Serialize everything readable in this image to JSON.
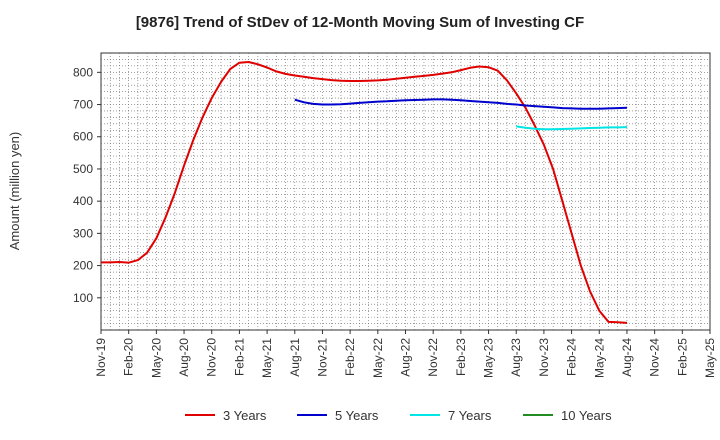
{
  "chart_data": {
    "type": "line",
    "title": "[9876]  Trend of StDev of 12-Month Moving Sum of Investing CF",
    "ylabel": "Amount (million yen)",
    "xlabel": "",
    "ylim": [
      0,
      860
    ],
    "yticks": [
      100,
      200,
      300,
      400,
      500,
      600,
      700,
      800
    ],
    "xlim": [
      "2019-11",
      "2025-05"
    ],
    "xticks": [
      "Nov-19",
      "Feb-20",
      "May-20",
      "Aug-20",
      "Nov-20",
      "Feb-21",
      "May-21",
      "Aug-21",
      "Nov-21",
      "Feb-22",
      "May-22",
      "Aug-22",
      "Nov-22",
      "Feb-23",
      "May-23",
      "Aug-23",
      "Nov-23",
      "Feb-24",
      "May-24",
      "Aug-24",
      "Nov-24",
      "Feb-25",
      "May-25"
    ],
    "grid": true,
    "legend_position": "bottom",
    "series": [
      {
        "name": "3 Years",
        "color": "#e00000",
        "x": [
          "2019-11",
          "2019-12",
          "2020-01",
          "2020-02",
          "2020-03",
          "2020-04",
          "2020-05",
          "2020-06",
          "2020-07",
          "2020-08",
          "2020-09",
          "2020-10",
          "2020-11",
          "2020-12",
          "2021-01",
          "2021-02",
          "2021-03",
          "2021-04",
          "2021-05",
          "2021-06",
          "2021-07",
          "2021-08",
          "2021-09",
          "2021-10",
          "2021-11",
          "2021-12",
          "2022-01",
          "2022-02",
          "2022-03",
          "2022-04",
          "2022-05",
          "2022-06",
          "2022-07",
          "2022-08",
          "2022-09",
          "2022-10",
          "2022-11",
          "2022-12",
          "2023-01",
          "2023-02",
          "2023-03",
          "2023-04",
          "2023-05",
          "2023-06",
          "2023-07",
          "2023-08",
          "2023-09",
          "2023-10",
          "2023-11",
          "2023-12",
          "2024-01",
          "2024-02",
          "2024-03",
          "2024-04",
          "2024-05",
          "2024-06",
          "2024-07",
          "2024-08"
        ],
        "values": [
          210,
          210,
          211,
          209,
          217,
          240,
          285,
          350,
          425,
          510,
          590,
          660,
          720,
          770,
          810,
          830,
          832,
          825,
          815,
          803,
          795,
          790,
          786,
          782,
          779,
          776,
          774,
          773,
          773,
          774,
          775,
          777,
          780,
          783,
          786,
          789,
          792,
          796,
          800,
          807,
          814,
          818,
          816,
          805,
          775,
          735,
          690,
          635,
          575,
          500,
          400,
          300,
          200,
          120,
          60,
          25,
          24,
          22
        ],
        "x_start_padding_note": ""
      },
      {
        "name": "5 Years",
        "color": "#0000cc",
        "x": [
          "2021-08",
          "2021-09",
          "2021-10",
          "2021-11",
          "2021-12",
          "2022-01",
          "2022-02",
          "2022-03",
          "2022-04",
          "2022-05",
          "2022-06",
          "2022-07",
          "2022-08",
          "2022-09",
          "2022-10",
          "2022-11",
          "2022-12",
          "2023-01",
          "2023-02",
          "2023-03",
          "2023-04",
          "2023-05",
          "2023-06",
          "2023-07",
          "2023-08",
          "2023-09",
          "2023-10",
          "2023-11",
          "2023-12",
          "2024-01",
          "2024-02",
          "2024-03",
          "2024-04",
          "2024-05",
          "2024-06",
          "2024-07",
          "2024-08"
        ],
        "values": [
          715,
          707,
          702,
          700,
          700,
          701,
          703,
          705,
          707,
          709,
          710,
          712,
          713,
          714,
          715,
          716,
          716,
          715,
          713,
          711,
          709,
          707,
          705,
          702,
          700,
          697,
          695,
          693,
          691,
          689,
          688,
          687,
          687,
          687,
          688,
          689,
          690
        ]
      },
      {
        "name": "7 Years",
        "color": "#00e5e5",
        "x": [
          "2023-08",
          "2023-09",
          "2023-10",
          "2023-11",
          "2023-12",
          "2024-01",
          "2024-02",
          "2024-03",
          "2024-04",
          "2024-05",
          "2024-06",
          "2024-07",
          "2024-08"
        ],
        "values": [
          632,
          628,
          625,
          623,
          623,
          624,
          625,
          626,
          627,
          628,
          629,
          629,
          630
        ]
      },
      {
        "name": "10 Years",
        "color": "#228b22",
        "x": [],
        "values": []
      }
    ]
  }
}
